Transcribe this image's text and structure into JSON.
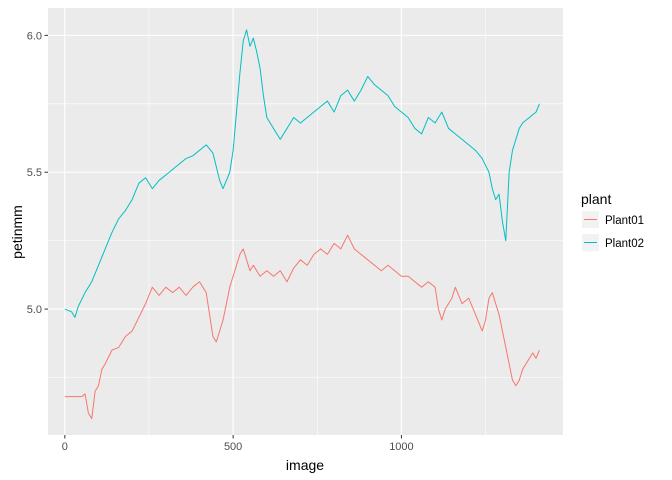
{
  "chart_data": {
    "type": "line",
    "xlabel": "image",
    "ylabel": "petinmm",
    "xlim": [
      -50,
      1480
    ],
    "ylim": [
      4.54,
      6.1
    ],
    "x_ticks": [
      0,
      500,
      1000
    ],
    "x_tick_labels": [
      "0",
      "500",
      "1000"
    ],
    "y_ticks": [
      5.0,
      5.5,
      6.0
    ],
    "y_tick_labels": [
      "5.0",
      "5.5",
      "6.0"
    ],
    "grid": true,
    "legend": {
      "title": "plant",
      "position": "right"
    },
    "series": [
      {
        "name": "Plant01",
        "color": "#F8766D",
        "points": [
          [
            0,
            4.68
          ],
          [
            30,
            4.68
          ],
          [
            50,
            4.68
          ],
          [
            60,
            4.69
          ],
          [
            70,
            4.62
          ],
          [
            80,
            4.6
          ],
          [
            90,
            4.7
          ],
          [
            100,
            4.72
          ],
          [
            110,
            4.78
          ],
          [
            120,
            4.8
          ],
          [
            140,
            4.85
          ],
          [
            160,
            4.86
          ],
          [
            180,
            4.9
          ],
          [
            200,
            4.92
          ],
          [
            220,
            4.97
          ],
          [
            240,
            5.02
          ],
          [
            260,
            5.08
          ],
          [
            280,
            5.05
          ],
          [
            300,
            5.08
          ],
          [
            320,
            5.06
          ],
          [
            340,
            5.08
          ],
          [
            360,
            5.05
          ],
          [
            380,
            5.08
          ],
          [
            400,
            5.1
          ],
          [
            420,
            5.06
          ],
          [
            430,
            4.98
          ],
          [
            440,
            4.9
          ],
          [
            450,
            4.88
          ],
          [
            460,
            4.92
          ],
          [
            470,
            4.96
          ],
          [
            480,
            5.02
          ],
          [
            490,
            5.08
          ],
          [
            500,
            5.12
          ],
          [
            510,
            5.16
          ],
          [
            520,
            5.2
          ],
          [
            530,
            5.22
          ],
          [
            540,
            5.18
          ],
          [
            550,
            5.14
          ],
          [
            560,
            5.16
          ],
          [
            580,
            5.12
          ],
          [
            600,
            5.14
          ],
          [
            620,
            5.12
          ],
          [
            640,
            5.14
          ],
          [
            660,
            5.1
          ],
          [
            680,
            5.15
          ],
          [
            700,
            5.18
          ],
          [
            720,
            5.16
          ],
          [
            740,
            5.2
          ],
          [
            760,
            5.22
          ],
          [
            780,
            5.2
          ],
          [
            800,
            5.24
          ],
          [
            820,
            5.22
          ],
          [
            840,
            5.27
          ],
          [
            860,
            5.22
          ],
          [
            880,
            5.2
          ],
          [
            900,
            5.18
          ],
          [
            920,
            5.16
          ],
          [
            940,
            5.14
          ],
          [
            960,
            5.16
          ],
          [
            980,
            5.14
          ],
          [
            1000,
            5.12
          ],
          [
            1020,
            5.12
          ],
          [
            1040,
            5.1
          ],
          [
            1060,
            5.08
          ],
          [
            1080,
            5.1
          ],
          [
            1100,
            5.08
          ],
          [
            1110,
            5.0
          ],
          [
            1120,
            4.96
          ],
          [
            1130,
            5.0
          ],
          [
            1150,
            5.04
          ],
          [
            1160,
            5.08
          ],
          [
            1180,
            5.02
          ],
          [
            1200,
            5.04
          ],
          [
            1220,
            4.98
          ],
          [
            1240,
            4.92
          ],
          [
            1250,
            4.96
          ],
          [
            1260,
            5.04
          ],
          [
            1270,
            5.06
          ],
          [
            1280,
            5.02
          ],
          [
            1290,
            4.98
          ],
          [
            1300,
            4.92
          ],
          [
            1310,
            4.86
          ],
          [
            1320,
            4.8
          ],
          [
            1330,
            4.74
          ],
          [
            1340,
            4.72
          ],
          [
            1350,
            4.74
          ],
          [
            1360,
            4.78
          ],
          [
            1370,
            4.8
          ],
          [
            1380,
            4.82
          ],
          [
            1390,
            4.84
          ],
          [
            1400,
            4.82
          ],
          [
            1410,
            4.85
          ]
        ]
      },
      {
        "name": "Plant02",
        "color": "#00BFC4",
        "points": [
          [
            0,
            5.0
          ],
          [
            20,
            4.99
          ],
          [
            30,
            4.97
          ],
          [
            40,
            5.01
          ],
          [
            60,
            5.06
          ],
          [
            80,
            5.1
          ],
          [
            100,
            5.16
          ],
          [
            120,
            5.22
          ],
          [
            140,
            5.28
          ],
          [
            160,
            5.33
          ],
          [
            180,
            5.36
          ],
          [
            200,
            5.4
          ],
          [
            220,
            5.46
          ],
          [
            240,
            5.48
          ],
          [
            260,
            5.44
          ],
          [
            280,
            5.47
          ],
          [
            300,
            5.49
          ],
          [
            320,
            5.51
          ],
          [
            340,
            5.53
          ],
          [
            360,
            5.55
          ],
          [
            380,
            5.56
          ],
          [
            400,
            5.58
          ],
          [
            420,
            5.6
          ],
          [
            440,
            5.57
          ],
          [
            450,
            5.52
          ],
          [
            460,
            5.47
          ],
          [
            470,
            5.44
          ],
          [
            480,
            5.47
          ],
          [
            490,
            5.5
          ],
          [
            500,
            5.58
          ],
          [
            510,
            5.72
          ],
          [
            520,
            5.86
          ],
          [
            530,
            5.98
          ],
          [
            540,
            6.02
          ],
          [
            550,
            5.96
          ],
          [
            560,
            5.99
          ],
          [
            570,
            5.94
          ],
          [
            580,
            5.88
          ],
          [
            590,
            5.78
          ],
          [
            600,
            5.7
          ],
          [
            620,
            5.66
          ],
          [
            640,
            5.62
          ],
          [
            660,
            5.66
          ],
          [
            680,
            5.7
          ],
          [
            700,
            5.68
          ],
          [
            720,
            5.7
          ],
          [
            740,
            5.72
          ],
          [
            760,
            5.74
          ],
          [
            780,
            5.76
          ],
          [
            800,
            5.72
          ],
          [
            820,
            5.78
          ],
          [
            840,
            5.8
          ],
          [
            860,
            5.76
          ],
          [
            880,
            5.8
          ],
          [
            900,
            5.85
          ],
          [
            920,
            5.82
          ],
          [
            940,
            5.8
          ],
          [
            960,
            5.78
          ],
          [
            980,
            5.74
          ],
          [
            1000,
            5.72
          ],
          [
            1020,
            5.7
          ],
          [
            1040,
            5.66
          ],
          [
            1060,
            5.64
          ],
          [
            1080,
            5.7
          ],
          [
            1100,
            5.68
          ],
          [
            1120,
            5.72
          ],
          [
            1140,
            5.66
          ],
          [
            1160,
            5.64
          ],
          [
            1180,
            5.62
          ],
          [
            1200,
            5.6
          ],
          [
            1220,
            5.58
          ],
          [
            1240,
            5.55
          ],
          [
            1260,
            5.5
          ],
          [
            1270,
            5.44
          ],
          [
            1280,
            5.4
          ],
          [
            1290,
            5.42
          ],
          [
            1300,
            5.32
          ],
          [
            1310,
            5.25
          ],
          [
            1320,
            5.5
          ],
          [
            1330,
            5.58
          ],
          [
            1340,
            5.62
          ],
          [
            1350,
            5.66
          ],
          [
            1360,
            5.68
          ],
          [
            1380,
            5.7
          ],
          [
            1400,
            5.72
          ],
          [
            1410,
            5.75
          ]
        ]
      }
    ]
  }
}
